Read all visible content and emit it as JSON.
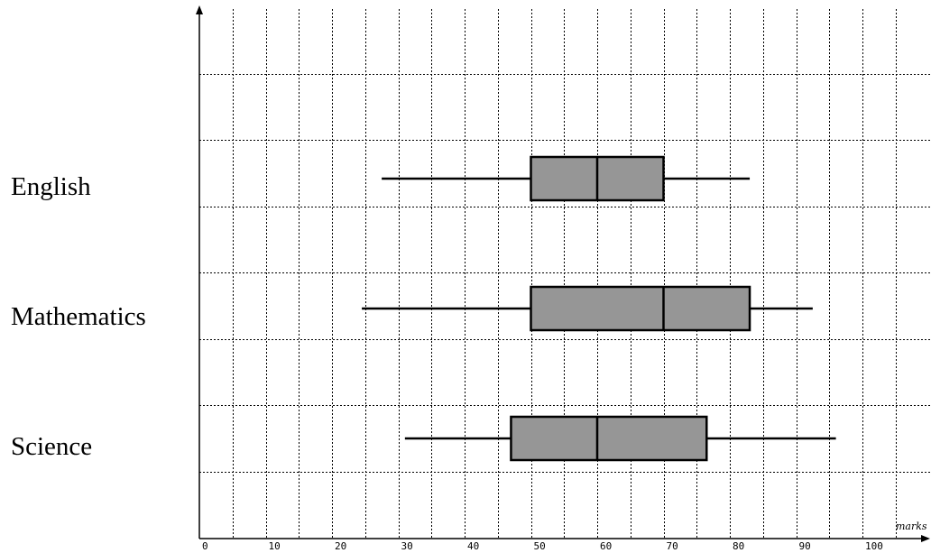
{
  "chart_data": {
    "type": "boxplot",
    "xlabel": "marks",
    "xlim": [
      0,
      110
    ],
    "x_ticks": [
      0,
      10,
      20,
      30,
      40,
      50,
      60,
      70,
      80,
      90,
      100
    ],
    "x_minor_step": 5,
    "grid": true,
    "series": [
      {
        "name": "English",
        "min": 27.5,
        "q1": 50,
        "median": 60,
        "q3": 70,
        "max": 83
      },
      {
        "name": "Mathematics",
        "min": 24.5,
        "q1": 50,
        "median": 70,
        "q3": 83,
        "max": 92.5
      },
      {
        "name": "Science",
        "min": 31,
        "q1": 47,
        "median": 60,
        "q3": 76.5,
        "max": 96
      }
    ],
    "colors": {
      "box_fill": "#969696",
      "stroke": "#000000"
    }
  }
}
